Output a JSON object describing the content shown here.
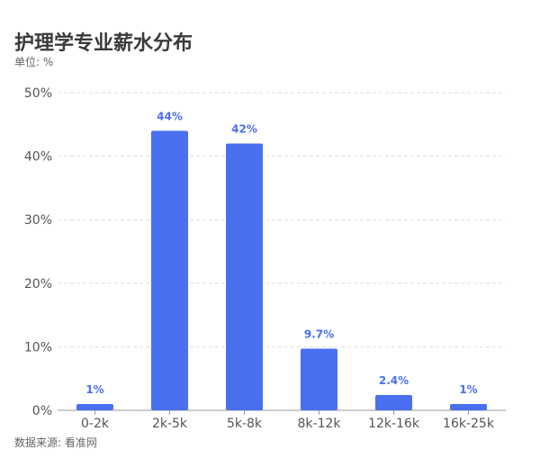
{
  "header": {
    "title": "护理学专业薪水分布",
    "unit": "单位: %"
  },
  "footer": {
    "source": "数据来源: 看准网"
  },
  "colors": {
    "bar": "#4a6ff0",
    "label": "#4a6ff0",
    "grid": "#dddddd",
    "axis": "#999999",
    "tick": "#555555"
  },
  "chart_data": {
    "type": "bar",
    "categories": [
      "0-2k",
      "2k-5k",
      "5k-8k",
      "8k-12k",
      "12k-16k",
      "16k-25k"
    ],
    "values": [
      1,
      44,
      42,
      9.7,
      2.4,
      1
    ],
    "value_labels": [
      "1%",
      "44%",
      "42%",
      "9.7%",
      "2.4%",
      "1%"
    ],
    "ylim": [
      0,
      50
    ],
    "yticks": [
      0,
      10,
      20,
      30,
      40,
      50
    ],
    "ytick_labels": [
      "0%",
      "10%",
      "20%",
      "30%",
      "40%",
      "50%"
    ],
    "grid": true,
    "legend": "none"
  }
}
